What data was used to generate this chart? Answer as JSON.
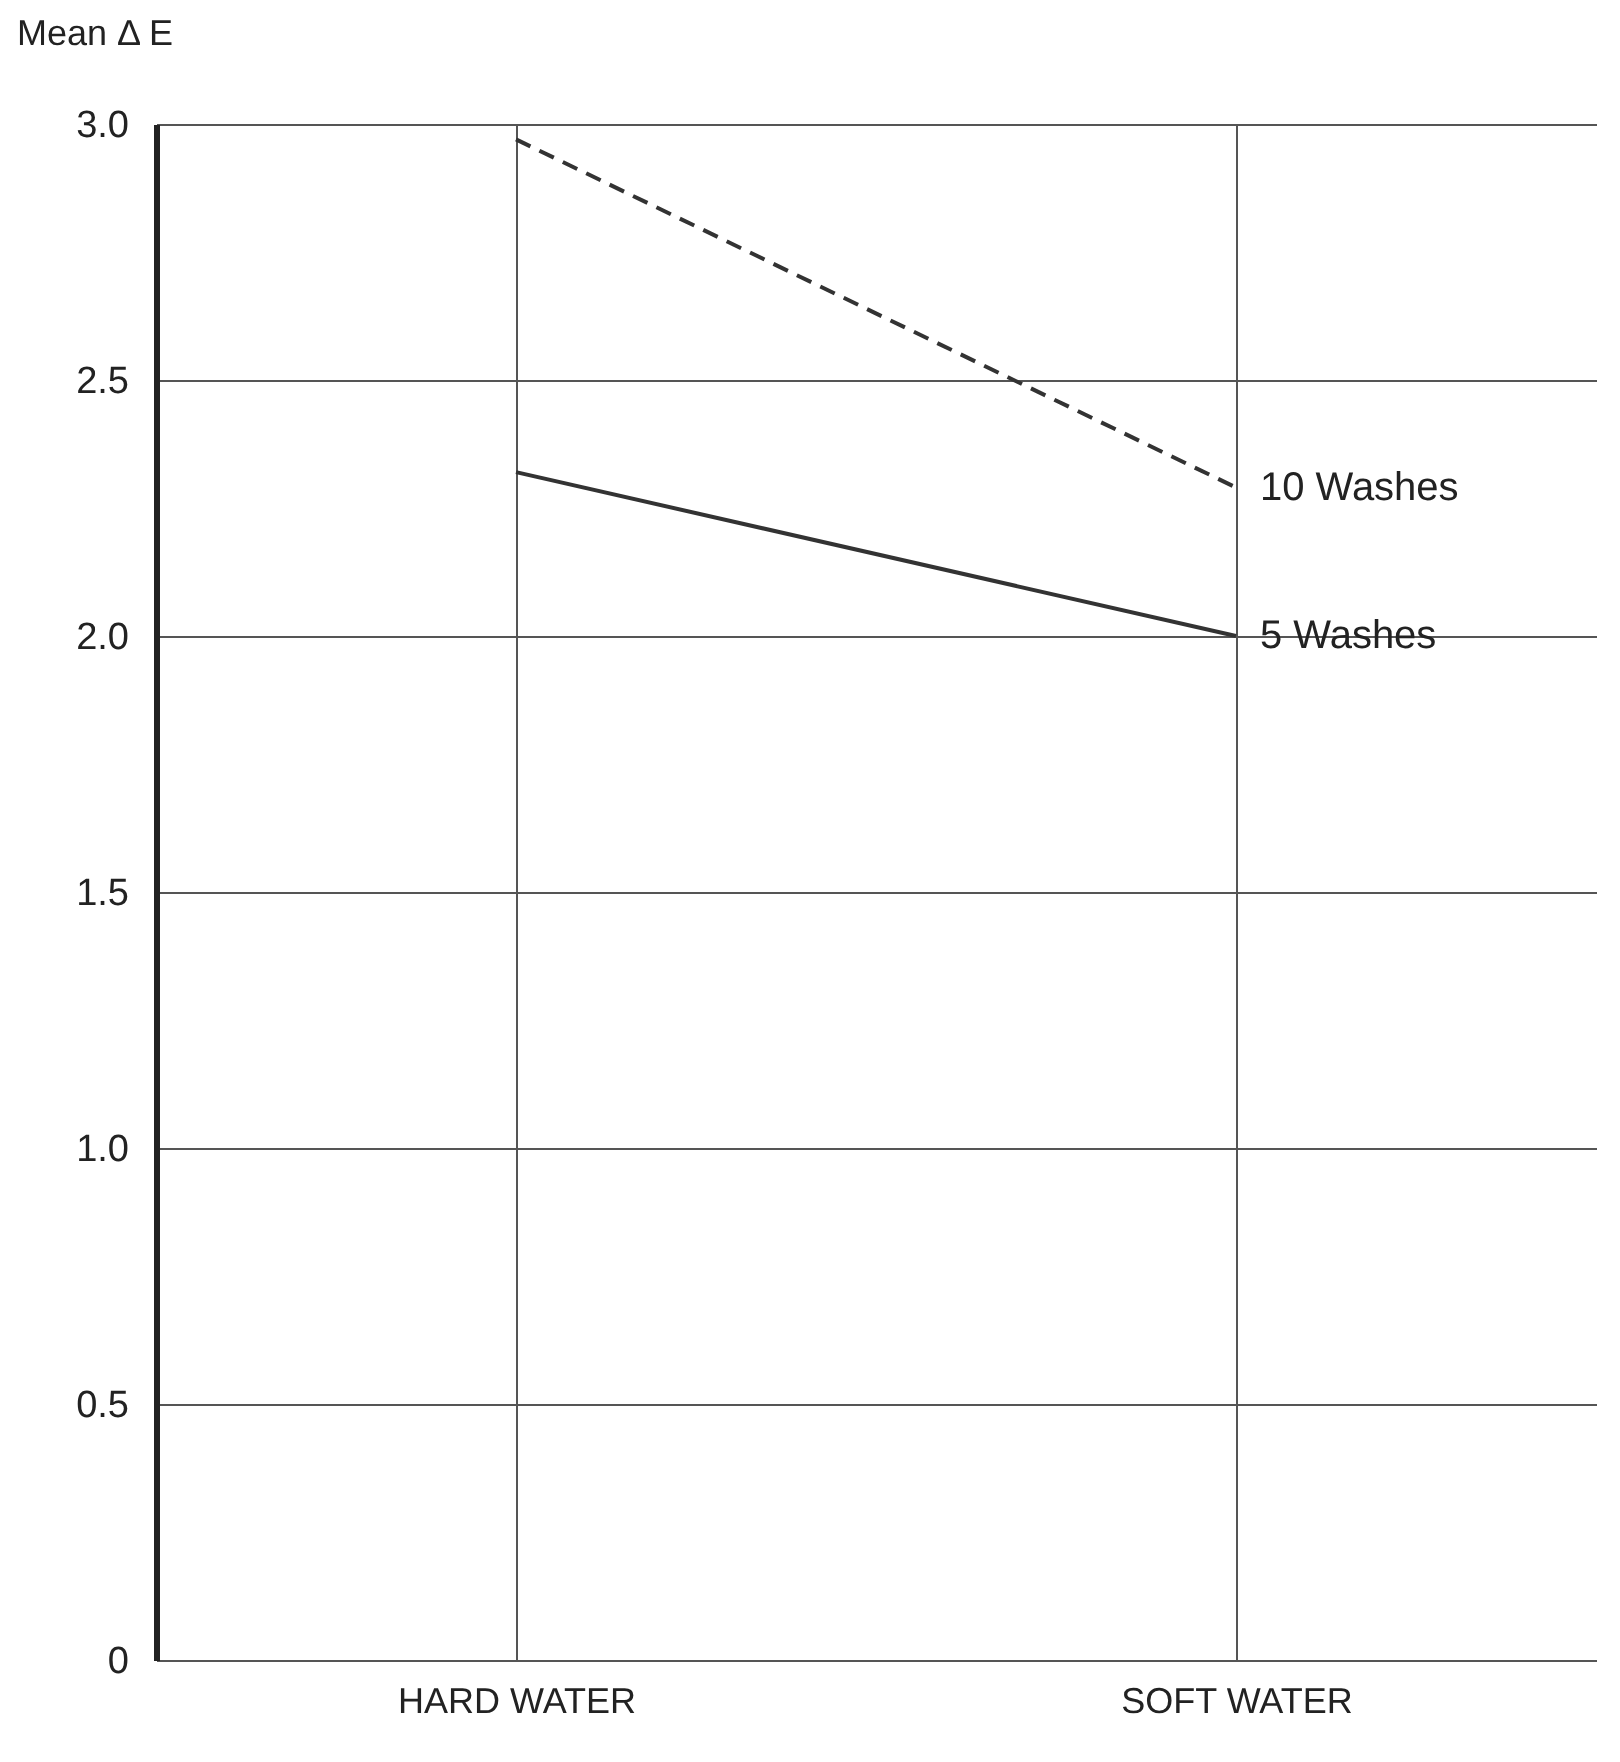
{
  "chart_data": {
    "type": "line",
    "ylabel": "Mean Δ E",
    "categories": [
      "HARD WATER",
      "SOFT WATER"
    ],
    "series": [
      {
        "name": "10 Washes",
        "color": "#333333",
        "line_style": "dashed",
        "values": [
          2.97,
          2.29
        ]
      },
      {
        "name": "5 Washes",
        "color": "#333333",
        "line_style": "solid",
        "values": [
          2.32,
          2.0
        ]
      }
    ],
    "ylim": [
      0,
      3.0
    ],
    "yticks": [
      {
        "value": 0,
        "label": "0"
      },
      {
        "value": 0.5,
        "label": "0.5"
      },
      {
        "value": 1.0,
        "label": "1.0"
      },
      {
        "value": 1.5,
        "label": "1.5"
      },
      {
        "value": 2.0,
        "label": "2.0"
      },
      {
        "value": 2.5,
        "label": "2.5"
      },
      {
        "value": 3.0,
        "label": "3.0"
      }
    ],
    "grid": true,
    "marker": "none"
  }
}
